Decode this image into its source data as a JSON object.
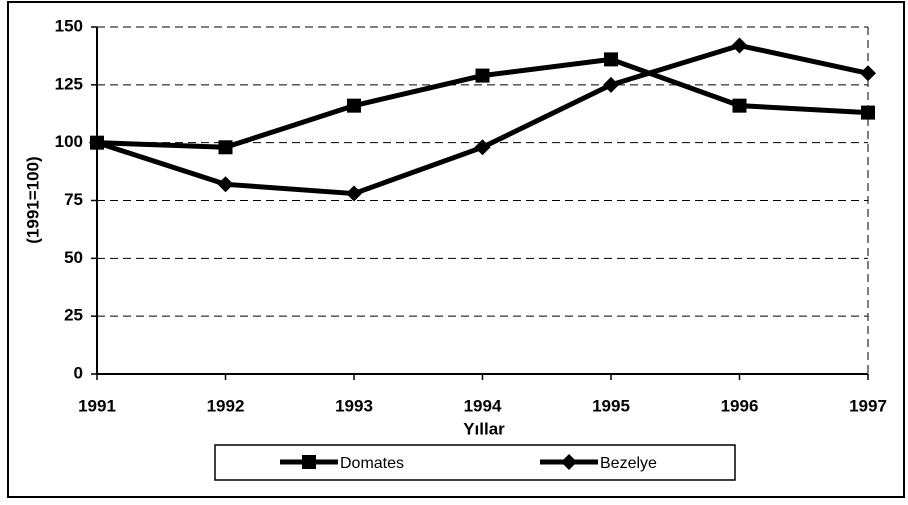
{
  "chart_data": {
    "type": "line",
    "x": [
      1991,
      1992,
      1993,
      1994,
      1995,
      1996,
      1997
    ],
    "xlim": [
      1991,
      1997
    ],
    "xticks": [
      1991,
      1992,
      1993,
      1994,
      1995,
      1996,
      1997
    ],
    "ylim": [
      0,
      150
    ],
    "yticks": [
      0,
      25,
      50,
      75,
      100,
      125,
      150
    ],
    "grid": true,
    "legend": "bottom",
    "xlabel": "Yıllar",
    "ylabel": "(1991=100)",
    "series": [
      {
        "name": "Domates",
        "color": "#000000",
        "marker": "square",
        "values": [
          100,
          98,
          116,
          129,
          136,
          116,
          113
        ]
      },
      {
        "name": "Bezelye",
        "color": "#000000",
        "marker": "diamond",
        "values": [
          100,
          82,
          78,
          98,
          125,
          142,
          130
        ]
      }
    ]
  }
}
